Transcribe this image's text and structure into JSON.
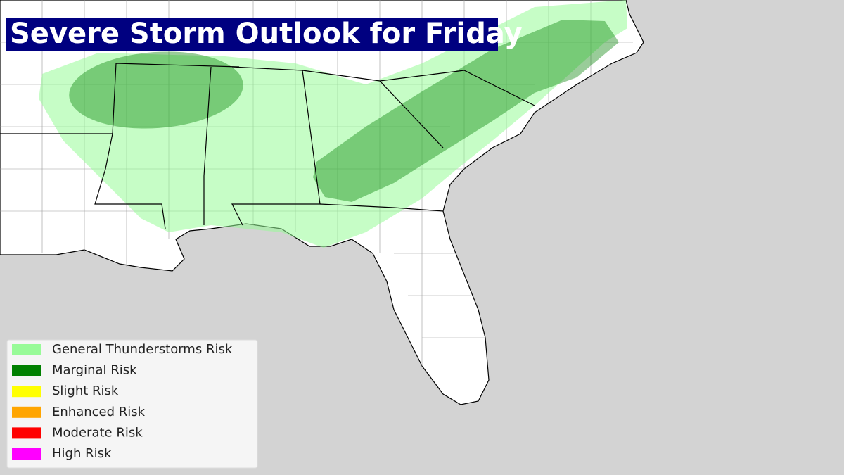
{
  "title": "Severe Storm Outlook for Friday",
  "legend": [
    {
      "label": "General Thunderstorms Risk",
      "color": "#98fb98"
    },
    {
      "label": "Marginal Risk",
      "color": "#008000"
    },
    {
      "label": "Slight Risk",
      "color": "#ffff00"
    },
    {
      "label": "Enhanced Risk",
      "color": "#ffa500"
    },
    {
      "label": "Moderate Risk",
      "color": "#ff0000"
    },
    {
      "label": "High Risk",
      "color": "#ff00ff"
    }
  ]
}
